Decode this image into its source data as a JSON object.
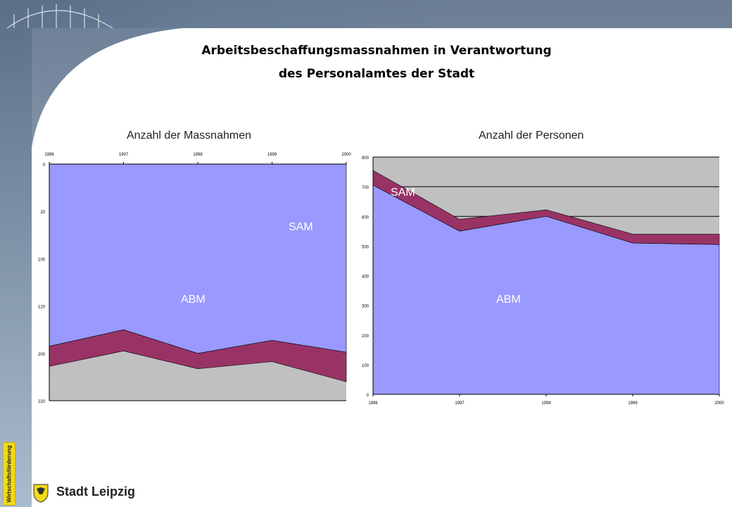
{
  "title_line1": "Arbeitsbeschaffungsmassnahmen in Verantwortung",
  "title_line2": "des Personalamtes der Stadt",
  "logo_text": "Stadt Leipzig",
  "side_tab_text": "Wirtschaftsförderung",
  "colors": {
    "sam": "#993366",
    "abm": "#9999ff",
    "plot_bg": "#c0c0c0"
  },
  "chart_data": [
    {
      "type": "area",
      "stacked": true,
      "title": "Anzahl der Massnahmen",
      "x": [
        "1996",
        "1997",
        "1998",
        "1999",
        "2000"
      ],
      "y_reversed": true,
      "ylim": [
        0,
        200
      ],
      "yticks": [
        "0",
        "20",
        "100",
        "120",
        "200",
        "220"
      ],
      "series": [
        {
          "name": "ABM",
          "values": [
            154,
            140,
            160,
            149,
            159
          ]
        },
        {
          "name": "SAM",
          "values": [
            17,
            18,
            13,
            18,
            25
          ]
        }
      ],
      "labels": {
        "abm": "ABM",
        "sam": "SAM"
      }
    },
    {
      "type": "area",
      "stacked": true,
      "title": "Anzahl der Personen",
      "x": [
        "1996",
        "1997",
        "1998",
        "1999",
        "2000"
      ],
      "ylim": [
        0,
        800
      ],
      "yticks": [
        "0",
        "100",
        "200",
        "300",
        "400",
        "500",
        "600",
        "700",
        "800"
      ],
      "series": [
        {
          "name": "ABM",
          "values": [
            705,
            550,
            600,
            510,
            505
          ]
        },
        {
          "name": "SAM",
          "values": [
            50,
            40,
            22,
            30,
            35
          ]
        }
      ],
      "labels": {
        "abm": "ABM",
        "sam": "SAM"
      }
    }
  ]
}
